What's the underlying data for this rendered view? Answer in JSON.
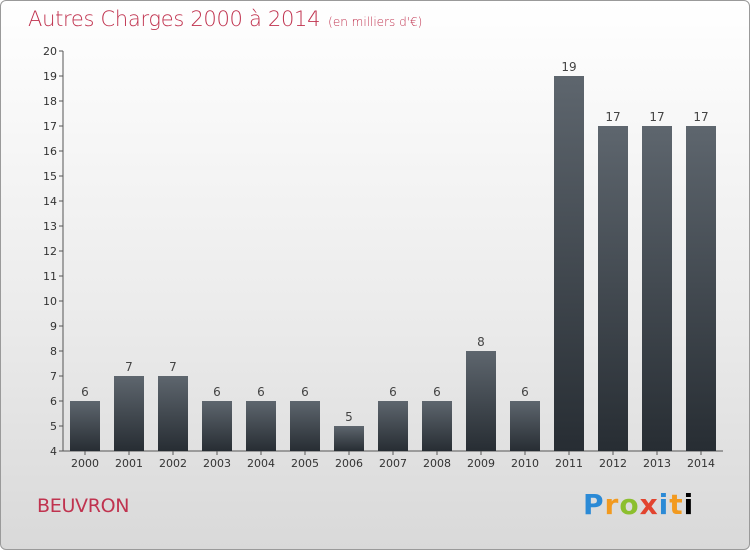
{
  "header": {
    "title": "Autres Charges 2000 à 2014",
    "unit": "(en milliers d'€)"
  },
  "footer": {
    "commune": "BEUVRON",
    "brand_letters": [
      "P",
      "r",
      "o",
      "x",
      "i",
      "t",
      "i"
    ]
  },
  "colors": {
    "title": "#c0334f",
    "bar_top": "#5e666e",
    "bar_bottom": "#272d33"
  },
  "chart_data": {
    "type": "bar",
    "title": "Autres Charges 2000 à 2014",
    "subtitle": "(en milliers d'€)",
    "categories": [
      "2000",
      "2001",
      "2002",
      "2003",
      "2004",
      "2005",
      "2006",
      "2007",
      "2008",
      "2009",
      "2010",
      "2011",
      "2012",
      "2013",
      "2014"
    ],
    "values": [
      6,
      7,
      7,
      6,
      6,
      6,
      5,
      6,
      6,
      8,
      6,
      19,
      17,
      17,
      17
    ],
    "ylim": [
      4,
      20
    ],
    "yticks": [
      4,
      5,
      6,
      7,
      8,
      9,
      10,
      11,
      12,
      13,
      14,
      15,
      16,
      17,
      18,
      19,
      20
    ],
    "grid": false,
    "legend": "none"
  }
}
